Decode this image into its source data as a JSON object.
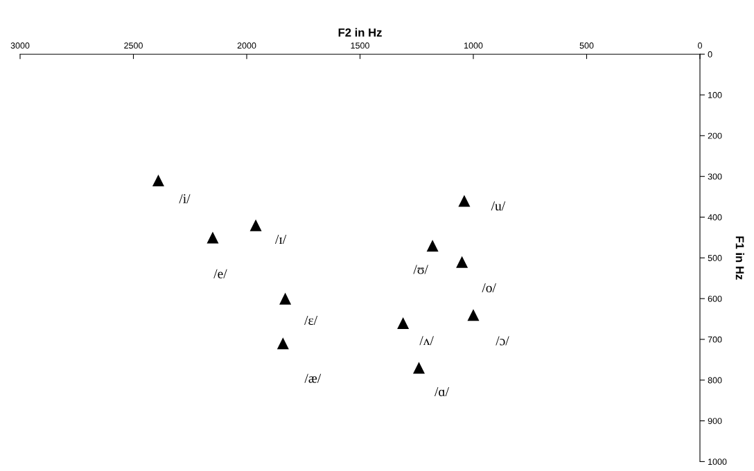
{
  "chart_data": {
    "type": "scatter",
    "xlabel": "F2 in Hz",
    "ylabel": "F1 in Hz",
    "x": [
      2390,
      1960,
      2150,
      1830,
      1840,
      1040,
      1180,
      1050,
      1000,
      1310,
      1240
    ],
    "series": [
      {
        "color": "#000000",
        "values": [
          310,
          420,
          450,
          600,
          710,
          360,
          470,
          510,
          640,
          660,
          770
        ]
      }
    ],
    "marker": "triangle",
    "grid": false,
    "legend": false,
    "xlim": [
      3000,
      0
    ],
    "xticks": [
      3000,
      2500,
      2000,
      1500,
      1000,
      500,
      0
    ],
    "ylim": [
      1000,
      0
    ],
    "yticks": [
      0,
      100,
      200,
      300,
      400,
      500,
      600,
      700,
      800,
      900,
      1000
    ],
    "annotations": [
      {
        "text": "/i/",
        "x": 2390,
        "y": 310
      },
      {
        "text": "/ɪ/",
        "x": 1960,
        "y": 420
      },
      {
        "text": "/e/",
        "x": 2150,
        "y": 450
      },
      {
        "text": "/ɛ/",
        "x": 1830,
        "y": 600
      },
      {
        "text": "/æ/",
        "x": 1840,
        "y": 710
      },
      {
        "text": "/u/",
        "x": 1040,
        "y": 360
      },
      {
        "text": "/ʊ/",
        "x": 1180,
        "y": 470
      },
      {
        "text": "/o/",
        "x": 1050,
        "y": 510
      },
      {
        "text": "/ɔ/",
        "x": 1000,
        "y": 640
      },
      {
        "text": "/ʌ/",
        "x": 1310,
        "y": 660
      },
      {
        "text": "/ɑ/",
        "x": 1240,
        "y": 770
      }
    ]
  }
}
